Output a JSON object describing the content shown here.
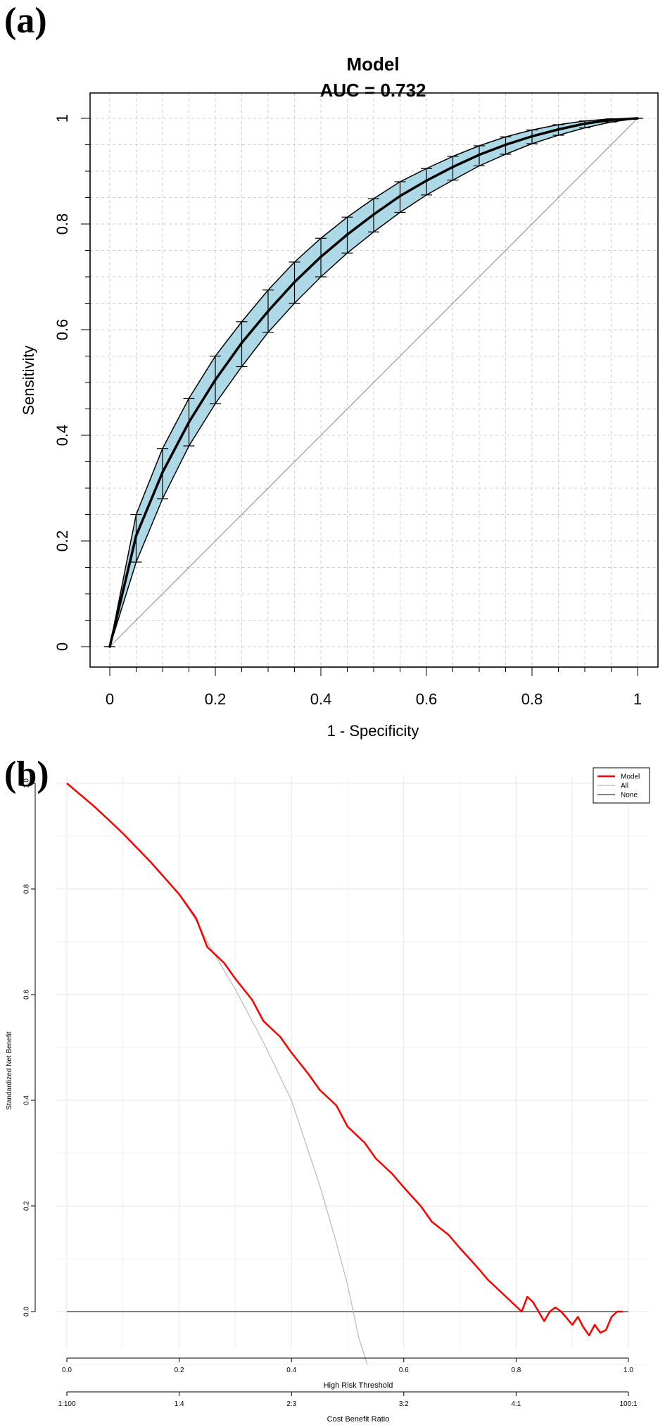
{
  "panel_a": {
    "label": "(a)"
  },
  "panel_b": {
    "label": "(b)"
  },
  "chart_data": [
    {
      "type": "line",
      "title": "Model",
      "subtitle": "AUC =  0.732",
      "xlabel": "1 - Specificity",
      "ylabel": "Sensitivity",
      "xlim": [
        0,
        1
      ],
      "ylim": [
        0,
        1
      ],
      "xticks": [
        "0",
        "0.2",
        "0.4",
        "0.6",
        "0.8",
        "1"
      ],
      "yticks": [
        "0",
        "0.2",
        "0.4",
        "0.6",
        "0.8",
        "1"
      ],
      "grid": true,
      "band_color": "#add8e6",
      "series": [
        {
          "x": [
            0,
            0.05,
            0.1,
            0.15,
            0.2,
            0.25,
            0.3,
            0.35,
            0.4,
            0.45,
            0.5,
            0.55,
            0.6,
            0.65,
            0.7,
            0.75,
            0.8,
            0.85,
            0.9,
            0.95,
            1.0
          ],
          "y": [
            0,
            0.21,
            0.33,
            0.425,
            0.505,
            0.575,
            0.635,
            0.69,
            0.738,
            0.78,
            0.818,
            0.853,
            0.882,
            0.908,
            0.931,
            0.95,
            0.966,
            0.979,
            0.99,
            0.997,
            1.0
          ],
          "lower": [
            0,
            0.16,
            0.28,
            0.38,
            0.46,
            0.53,
            0.595,
            0.65,
            0.7,
            0.745,
            0.785,
            0.822,
            0.855,
            0.883,
            0.91,
            0.932,
            0.952,
            0.968,
            0.982,
            0.993,
            1.0
          ],
          "upper": [
            0,
            0.25,
            0.375,
            0.47,
            0.55,
            0.615,
            0.675,
            0.728,
            0.773,
            0.813,
            0.848,
            0.88,
            0.905,
            0.928,
            0.948,
            0.965,
            0.978,
            0.988,
            0.995,
            0.999,
            1.0
          ]
        }
      ],
      "reference_line": [
        [
          0,
          0
        ],
        [
          1,
          1
        ]
      ]
    },
    {
      "type": "line",
      "xlabel": "High Risk Threshold",
      "ylabel": "Standardized Net Benefit",
      "x2label": "Cost Benefit Ratio",
      "xlim": [
        0,
        1
      ],
      "ylim": [
        -0.1,
        1.0
      ],
      "xticks": [
        "0.0",
        "0.2",
        "0.4",
        "0.6",
        "0.8",
        "1.0"
      ],
      "yticks": [
        "0.0",
        "0.2",
        "0.4",
        "0.6",
        "0.8",
        "1.0"
      ],
      "x2ticks": [
        "1:100",
        "1:4",
        "2:3",
        "3:2",
        "4:1",
        "100:1"
      ],
      "grid": true,
      "legend_position": "top-right",
      "series": [
        {
          "name": "Model",
          "color": "#ff0000",
          "x": [
            0,
            0.05,
            0.1,
            0.15,
            0.2,
            0.23,
            0.25,
            0.28,
            0.3,
            0.33,
            0.35,
            0.38,
            0.4,
            0.43,
            0.45,
            0.48,
            0.5,
            0.53,
            0.55,
            0.58,
            0.6,
            0.63,
            0.65,
            0.68,
            0.7,
            0.73,
            0.75,
            0.78,
            0.8,
            0.81,
            0.82,
            0.83,
            0.84,
            0.85,
            0.86,
            0.87,
            0.88,
            0.89,
            0.9,
            0.91,
            0.92,
            0.93,
            0.94,
            0.95,
            0.96,
            0.97,
            0.98,
            0.99
          ],
          "y": [
            1.0,
            0.955,
            0.905,
            0.85,
            0.79,
            0.745,
            0.69,
            0.66,
            0.63,
            0.59,
            0.55,
            0.52,
            0.49,
            0.45,
            0.42,
            0.39,
            0.35,
            0.32,
            0.29,
            0.26,
            0.235,
            0.2,
            0.17,
            0.145,
            0.12,
            0.085,
            0.06,
            0.03,
            0.01,
            0.0,
            0.028,
            0.018,
            0.0,
            -0.018,
            0.0,
            0.008,
            0.0,
            -0.012,
            -0.025,
            -0.01,
            -0.03,
            -0.045,
            -0.025,
            -0.04,
            -0.035,
            -0.01,
            0.0,
            0.0
          ]
        },
        {
          "name": "All",
          "color": "#bdbdbd",
          "x": [
            0,
            0.05,
            0.1,
            0.15,
            0.2,
            0.23,
            0.25,
            0.3,
            0.35,
            0.4,
            0.45,
            0.48,
            0.5,
            0.52,
            0.535
          ],
          "y": [
            1.0,
            0.955,
            0.905,
            0.85,
            0.79,
            0.74,
            0.7,
            0.61,
            0.51,
            0.4,
            0.24,
            0.13,
            0.05,
            -0.05,
            -0.1
          ]
        },
        {
          "name": "None",
          "color": "#555555",
          "x": [
            0,
            1
          ],
          "y": [
            0,
            0
          ]
        }
      ]
    }
  ]
}
